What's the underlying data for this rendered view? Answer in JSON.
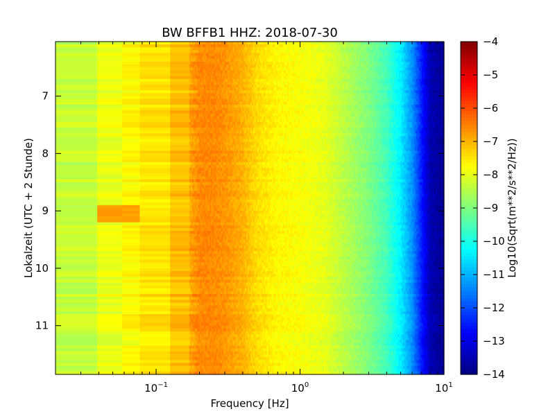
{
  "chart_data": {
    "type": "heatmap",
    "title": "BW BFFB1 HHZ: 2018-07-30",
    "xlabel": "Frequency [Hz]",
    "ylabel": "Lokalzeit (UTC + 2 Stunde)",
    "x_scale": "log",
    "xlim": [
      0.02,
      10
    ],
    "ylim": [
      6.05,
      11.85
    ],
    "y_inverted": true,
    "x_ticks": [
      {
        "value": 0.1,
        "base": "10",
        "exp": "−1"
      },
      {
        "value": 1,
        "base": "10",
        "exp": "0"
      },
      {
        "value": 10,
        "base": "10",
        "exp": "1"
      }
    ],
    "y_ticks": [
      "7",
      "8",
      "9",
      "10",
      "11"
    ],
    "y_tick_values": [
      7,
      8,
      9,
      10,
      11
    ],
    "colorbar": {
      "label": "Log10(Sqrt(m**2/s**2/Hz))",
      "range": [
        -14,
        -4
      ],
      "ticks": [
        "−4",
        "−5",
        "−6",
        "−7",
        "−8",
        "−9",
        "−10",
        "−11",
        "−12",
        "−13",
        "−14"
      ],
      "tick_values": [
        -4,
        -5,
        -6,
        -7,
        -8,
        -9,
        -10,
        -11,
        -12,
        -13,
        -14
      ],
      "colormap": "jet"
    },
    "spectrum_profile": {
      "frequency_hz": [
        0.02,
        0.035,
        0.05,
        0.08,
        0.12,
        0.16,
        0.2,
        0.25,
        0.3,
        0.4,
        0.5,
        0.7,
        1.0,
        1.5,
        2.0,
        3.0,
        4.0,
        5.0,
        6.0,
        7.0,
        8.0,
        10.0
      ],
      "level_log10": [
        -8.5,
        -8.2,
        -7.9,
        -7.6,
        -7.4,
        -7.0,
        -6.6,
        -6.6,
        -6.7,
        -7.0,
        -7.4,
        -7.7,
        -7.8,
        -8.0,
        -8.4,
        -9.0,
        -9.6,
        -10.4,
        -11.3,
        -12.5,
        -13.5,
        -13.8
      ]
    },
    "band_edges_hz": [
      0.02,
      0.039,
      0.058,
      0.077,
      0.125,
      0.17,
      10
    ],
    "orange_episode": {
      "time_start": 8.92,
      "time_end": 9.2,
      "freq_max_hz": 0.077,
      "level_log10": -6.8
    }
  }
}
